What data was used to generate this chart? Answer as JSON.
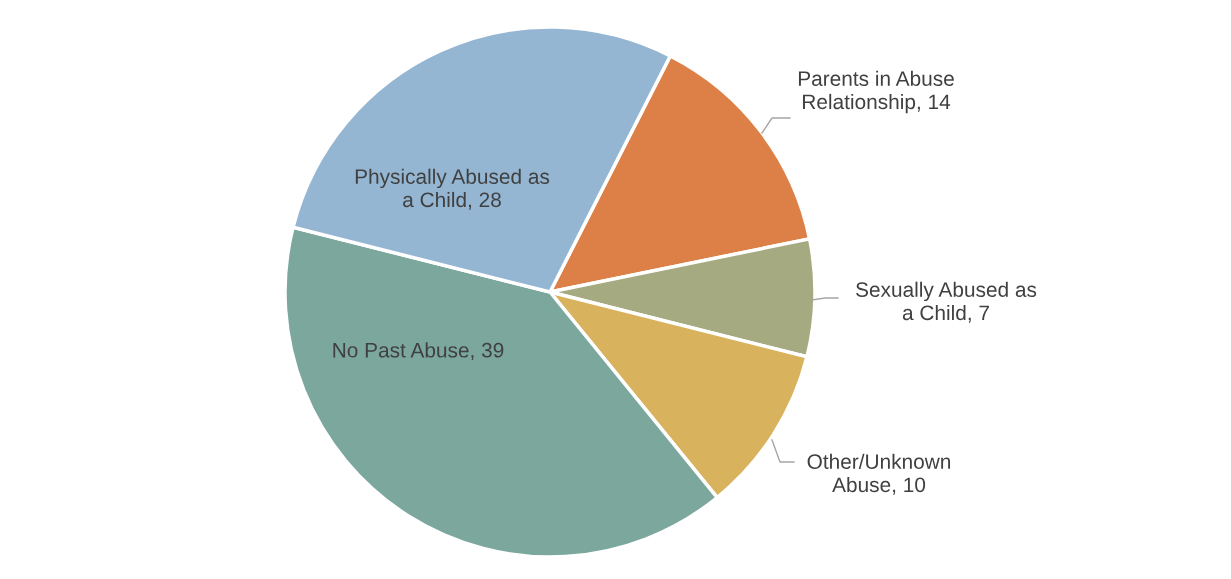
{
  "chart_data": {
    "type": "pie",
    "categories": [
      "Parents in Abuse Relationship",
      "Sexually Abused as a Child",
      "Other/Unknown Abuse",
      "No Past Abuse",
      "Physically Abused as a Child"
    ],
    "values": [
      14,
      7,
      10,
      39,
      28
    ],
    "value_labels": [
      ", 14",
      ", 7",
      ", 10",
      ", 39",
      ", 28"
    ],
    "colors": [
      "#dd8047",
      "#a5aa80",
      "#d8b25c",
      "#7ba79d",
      "#94b6d2"
    ]
  }
}
